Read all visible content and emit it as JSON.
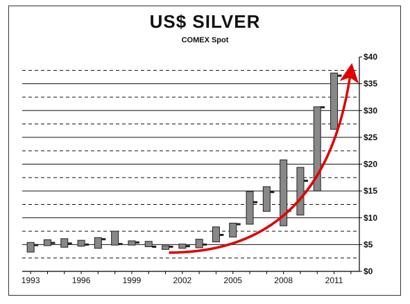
{
  "chart_data": {
    "type": "candlestick",
    "title": "US$ SILVER",
    "subtitle": "COMEX Spot",
    "xlabel": "",
    "ylabel": "",
    "x_tick_labels": [
      "1993",
      "1996",
      "1999",
      "2002",
      "2005",
      "2008",
      "2011"
    ],
    "y_tick_labels": [
      "$0",
      "$5",
      "$10",
      "$15",
      "$20",
      "$25",
      "$30",
      "$35",
      "$40"
    ],
    "ylim": [
      0,
      40
    ],
    "xlim": [
      1992.5,
      2012.5
    ],
    "grid": true,
    "legend": "none",
    "colors": {
      "bar": "#888888",
      "bar_border": "#222222",
      "arrow": "#e00000",
      "grid": "#111111"
    },
    "years": [
      1993,
      1994,
      1995,
      1996,
      1997,
      1998,
      1999,
      2000,
      2001,
      2002,
      2003,
      2004,
      2005,
      2006,
      2007,
      2008,
      2009,
      2010,
      2011
    ],
    "series": [
      {
        "low": 3.6,
        "high": 5.4,
        "close": 4.9
      },
      {
        "low": 4.8,
        "high": 5.9,
        "close": 5.3
      },
      {
        "low": 4.5,
        "high": 6.1,
        "close": 5.2
      },
      {
        "low": 4.7,
        "high": 5.8,
        "close": 5.0
      },
      {
        "low": 4.3,
        "high": 6.3,
        "close": 6.0
      },
      {
        "low": 4.9,
        "high": 7.5,
        "close": 5.1
      },
      {
        "low": 4.9,
        "high": 5.7,
        "close": 5.4
      },
      {
        "low": 4.6,
        "high": 5.6,
        "close": 4.6
      },
      {
        "low": 4.1,
        "high": 4.8,
        "close": 4.6
      },
      {
        "low": 4.3,
        "high": 5.1,
        "close": 4.7
      },
      {
        "low": 4.4,
        "high": 6.0,
        "close": 5.0
      },
      {
        "low": 5.5,
        "high": 8.3,
        "close": 6.8
      },
      {
        "low": 6.4,
        "high": 9.0,
        "close": 8.8
      },
      {
        "low": 8.8,
        "high": 14.9,
        "close": 12.9
      },
      {
        "low": 11.2,
        "high": 15.8,
        "close": 14.8
      },
      {
        "low": 8.5,
        "high": 20.8,
        "close": 11.3
      },
      {
        "low": 10.5,
        "high": 19.4,
        "close": 16.9
      },
      {
        "low": 15.0,
        "high": 30.7,
        "close": 30.6
      },
      {
        "low": 26.5,
        "high": 37.0,
        "close": 36.5
      }
    ],
    "annotations": [
      {
        "type": "arrow",
        "description": "upward trend arrow",
        "from": [
          2001.2,
          3.5
        ],
        "control": [
          2010.5,
          3.5
        ],
        "to": [
          2012.0,
          37.5
        ]
      }
    ]
  }
}
